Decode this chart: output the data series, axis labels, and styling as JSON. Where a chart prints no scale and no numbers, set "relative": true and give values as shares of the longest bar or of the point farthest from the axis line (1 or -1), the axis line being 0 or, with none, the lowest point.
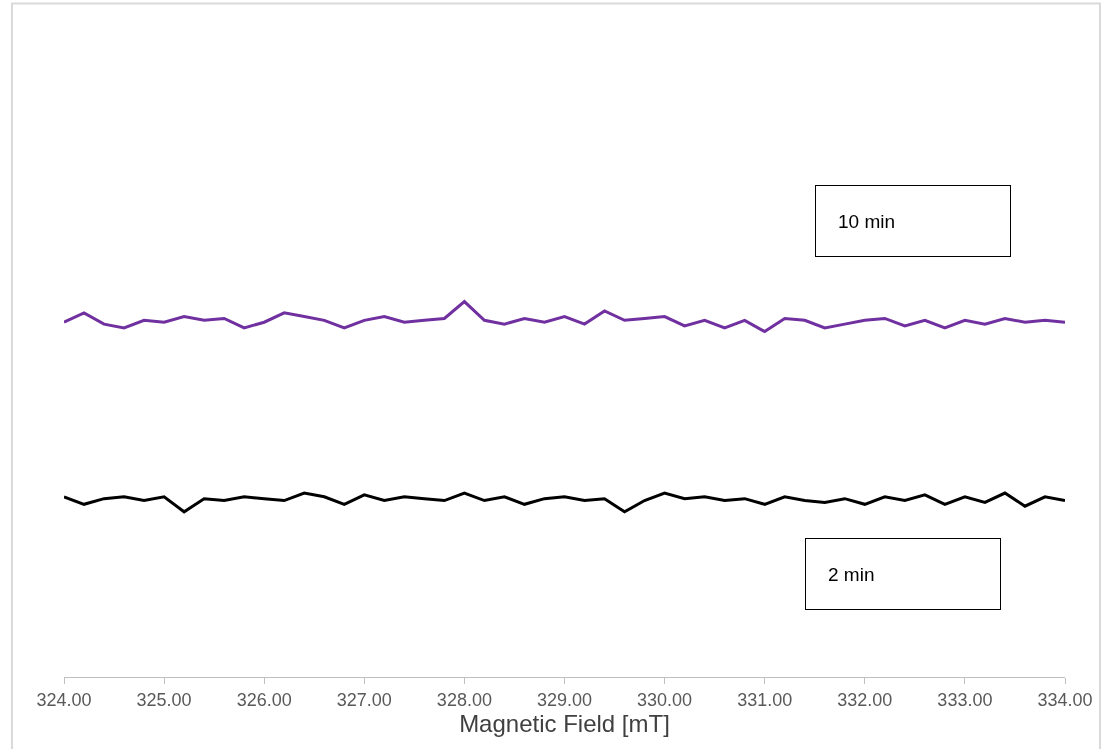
{
  "chart_data": {
    "type": "line",
    "xlabel": "Magnetic Field [mT]",
    "relative": true,
    "x": [
      324.0,
      324.2,
      324.4,
      324.6,
      324.8,
      325.0,
      325.2,
      325.4,
      325.6,
      325.8,
      326.0,
      326.2,
      326.4,
      326.6,
      326.8,
      327.0,
      327.2,
      327.4,
      327.6,
      327.8,
      328.0,
      328.2,
      328.4,
      328.6,
      328.8,
      329.0,
      329.2,
      329.4,
      329.6,
      329.8,
      330.0,
      330.2,
      330.4,
      330.6,
      330.8,
      331.0,
      331.2,
      331.4,
      331.6,
      331.8,
      332.0,
      332.2,
      332.4,
      332.6,
      332.8,
      333.0,
      333.2,
      333.4,
      333.6,
      333.8,
      334.0
    ],
    "xlim": [
      324,
      334
    ],
    "xticks": [
      {
        "value": 324,
        "label": "324.00"
      },
      {
        "value": 325,
        "label": "325.00"
      },
      {
        "value": 326,
        "label": "326.00"
      },
      {
        "value": 327,
        "label": "327.00"
      },
      {
        "value": 328,
        "label": "328.00"
      },
      {
        "value": 329,
        "label": "329.00"
      },
      {
        "value": 330,
        "label": "330.00"
      },
      {
        "value": 331,
        "label": "331.00"
      },
      {
        "value": 332,
        "label": "332.00"
      },
      {
        "value": 333,
        "label": "333.00"
      },
      {
        "value": 334,
        "label": "334.00"
      }
    ],
    "annotations": [
      "10 min",
      "2 min"
    ],
    "tick_labels": "x",
    "marker": "none",
    "line_style": "solid",
    "series": [
      {
        "color": "#7030a0",
        "values": [
          0.945,
          0.97,
          0.94,
          0.93,
          0.95,
          0.945,
          0.96,
          0.95,
          0.955,
          0.93,
          0.945,
          0.97,
          0.96,
          0.95,
          0.93,
          0.95,
          0.96,
          0.945,
          0.95,
          0.955,
          1.0,
          0.95,
          0.94,
          0.955,
          0.945,
          0.96,
          0.94,
          0.975,
          0.95,
          0.955,
          0.96,
          0.935,
          0.95,
          0.93,
          0.95,
          0.92,
          0.955,
          0.95,
          0.93,
          0.94,
          0.95,
          0.955,
          0.935,
          0.95,
          0.93,
          0.95,
          0.94,
          0.955,
          0.945,
          0.95,
          0.945
        ]
      },
      {
        "color": "#000000",
        "values": [
          0.48,
          0.46,
          0.475,
          0.48,
          0.47,
          0.48,
          0.44,
          0.475,
          0.47,
          0.48,
          0.475,
          0.47,
          0.49,
          0.48,
          0.46,
          0.485,
          0.47,
          0.48,
          0.475,
          0.47,
          0.49,
          0.47,
          0.48,
          0.46,
          0.475,
          0.48,
          0.47,
          0.475,
          0.44,
          0.47,
          0.49,
          0.475,
          0.48,
          0.47,
          0.475,
          0.46,
          0.48,
          0.47,
          0.465,
          0.475,
          0.46,
          0.48,
          0.47,
          0.485,
          0.46,
          0.48,
          0.465,
          0.49,
          0.455,
          0.48,
          0.47
        ]
      }
    ]
  }
}
